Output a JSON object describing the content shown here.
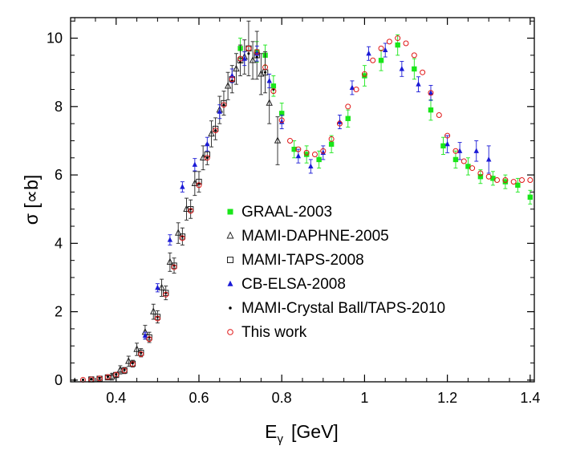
{
  "chart_data": {
    "type": "scatter",
    "title": "",
    "xlabel_main": "E",
    "xlabel_sub": "γ",
    "xlabel_unit": "[GeV]",
    "ylabel": "σ [∝b]",
    "xlim": [
      0.29,
      1.41
    ],
    "ylim": [
      -0.05,
      10.6
    ],
    "x_ticks": [
      0.4,
      0.6,
      0.8,
      1.0,
      1.2,
      1.4
    ],
    "x_tick_labels": [
      "0.4",
      "0.6",
      "0.8",
      "1",
      "1.2",
      "1.4"
    ],
    "y_ticks": [
      0,
      2,
      4,
      6,
      8,
      10
    ],
    "y_tick_labels": [
      "0",
      "2",
      "4",
      "6",
      "8",
      "10"
    ],
    "legend_position": "center",
    "series": [
      {
        "name": "GRAAL-2003",
        "marker": "filled-square",
        "color": "#19e619",
        "x": [
          0.7,
          0.74,
          0.76,
          0.78,
          0.8,
          0.83,
          0.86,
          0.89,
          0.92,
          0.96,
          1.0,
          1.04,
          1.08,
          1.12,
          1.16,
          1.19,
          1.22,
          1.25,
          1.28,
          1.31,
          1.34,
          1.37,
          1.4
        ],
        "y": [
          9.7,
          9.6,
          9.5,
          8.6,
          7.8,
          6.75,
          6.6,
          6.45,
          6.9,
          7.65,
          8.9,
          9.35,
          9.8,
          9.1,
          7.9,
          6.85,
          6.45,
          6.25,
          5.95,
          5.9,
          5.8,
          5.7,
          5.35
        ],
        "err": [
          0.3,
          0.3,
          0.3,
          0.3,
          0.3,
          0.25,
          0.25,
          0.25,
          0.25,
          0.25,
          0.3,
          0.3,
          0.3,
          0.3,
          0.3,
          0.25,
          0.25,
          0.25,
          0.2,
          0.2,
          0.2,
          0.2,
          0.2
        ]
      },
      {
        "name": "MAMI-DAPHNE-2005",
        "marker": "open-triangle",
        "color": "#222222",
        "x": [
          0.39,
          0.41,
          0.43,
          0.45,
          0.47,
          0.49,
          0.51,
          0.53,
          0.55,
          0.57,
          0.59,
          0.61,
          0.63,
          0.65,
          0.67,
          0.69,
          0.71,
          0.73,
          0.75,
          0.77,
          0.79
        ],
        "y": [
          0.1,
          0.3,
          0.55,
          0.9,
          1.4,
          2.0,
          2.7,
          3.45,
          4.3,
          5.0,
          5.75,
          6.5,
          7.2,
          7.9,
          8.6,
          9.1,
          9.45,
          9.35,
          8.95,
          8.1,
          7.0
        ],
        "err": [
          0.1,
          0.12,
          0.15,
          0.18,
          0.2,
          0.22,
          0.25,
          0.27,
          0.3,
          0.32,
          0.35,
          0.35,
          0.38,
          0.4,
          0.4,
          0.45,
          0.5,
          0.55,
          0.6,
          0.6,
          0.7
        ]
      },
      {
        "name": "MAMI-TAPS-2008",
        "marker": "open-square",
        "color": "#222222",
        "x": [
          0.34,
          0.36,
          0.38,
          0.4,
          0.42,
          0.44,
          0.46,
          0.48,
          0.5,
          0.52,
          0.54,
          0.56,
          0.58,
          0.6,
          0.62,
          0.64,
          0.66,
          0.68,
          0.7,
          0.72,
          0.74,
          0.76
        ],
        "y": [
          0.02,
          0.04,
          0.08,
          0.15,
          0.28,
          0.48,
          0.8,
          1.25,
          1.85,
          2.55,
          3.35,
          4.2,
          5.0,
          5.8,
          6.6,
          7.35,
          8.1,
          8.8,
          9.35,
          9.7,
          9.5,
          9.0
        ],
        "err": [
          0.02,
          0.03,
          0.05,
          0.07,
          0.09,
          0.1,
          0.12,
          0.15,
          0.18,
          0.2,
          0.22,
          0.25,
          0.27,
          0.3,
          0.3,
          0.32,
          0.35,
          0.4,
          0.45,
          0.8,
          0.7,
          0.6
        ]
      },
      {
        "name": "CB-ELSA-2008",
        "marker": "filled-triangle",
        "color": "#1a1ad6",
        "x": [
          0.47,
          0.5,
          0.53,
          0.56,
          0.59,
          0.62,
          0.65,
          0.68,
          0.71,
          0.74,
          0.77,
          0.8,
          0.84,
          0.87,
          0.9,
          0.94,
          0.97,
          1.01,
          1.05,
          1.09,
          1.13,
          1.16,
          1.2,
          1.23,
          1.27,
          1.3
        ],
        "y": [
          1.3,
          2.7,
          4.1,
          5.65,
          6.3,
          6.9,
          7.85,
          8.9,
          9.4,
          9.55,
          8.75,
          7.55,
          6.55,
          6.25,
          6.65,
          7.55,
          8.55,
          9.55,
          9.65,
          9.1,
          8.65,
          8.4,
          6.9,
          6.7,
          6.7,
          6.45
        ],
        "err": [
          0.1,
          0.12,
          0.15,
          0.15,
          0.18,
          0.2,
          0.2,
          0.2,
          0.2,
          0.22,
          0.2,
          0.2,
          0.2,
          0.2,
          0.2,
          0.2,
          0.2,
          0.2,
          0.2,
          0.22,
          0.22,
          0.22,
          0.25,
          0.25,
          0.3,
          0.4
        ]
      },
      {
        "name": "MAMI-Crystal Ball/TAPS-2010",
        "marker": "filled-dot",
        "color": "#000000",
        "x": [
          0.3,
          0.32,
          0.34,
          0.36,
          0.38,
          0.4,
          0.42,
          0.44,
          0.46,
          0.48,
          0.5,
          0.52,
          0.54,
          0.56,
          0.58,
          0.6,
          0.62,
          0.64,
          0.66,
          0.68,
          0.7,
          0.72,
          0.74,
          0.76,
          0.78
        ],
        "y": [
          0.0,
          0.01,
          0.03,
          0.06,
          0.1,
          0.17,
          0.3,
          0.5,
          0.8,
          1.25,
          1.85,
          2.55,
          3.35,
          4.2,
          5.0,
          5.75,
          6.5,
          7.3,
          8.05,
          8.75,
          9.3,
          9.55,
          9.45,
          9.0,
          8.5
        ]
      },
      {
        "name": "This work",
        "marker": "open-circle",
        "color": "#e01515",
        "x": [
          0.32,
          0.34,
          0.36,
          0.38,
          0.4,
          0.42,
          0.44,
          0.46,
          0.48,
          0.5,
          0.52,
          0.54,
          0.56,
          0.58,
          0.6,
          0.62,
          0.64,
          0.66,
          0.68,
          0.7,
          0.72,
          0.74,
          0.76,
          0.78,
          0.8,
          0.82,
          0.84,
          0.86,
          0.88,
          0.9,
          0.92,
          0.94,
          0.96,
          0.98,
          1.0,
          1.02,
          1.04,
          1.06,
          1.08,
          1.1,
          1.12,
          1.14,
          1.16,
          1.18,
          1.2,
          1.22,
          1.24,
          1.26,
          1.28,
          1.3,
          1.32,
          1.34,
          1.36,
          1.38,
          1.4
        ],
        "y": [
          0.01,
          0.02,
          0.05,
          0.09,
          0.16,
          0.28,
          0.47,
          0.76,
          1.2,
          1.8,
          2.5,
          3.3,
          4.15,
          4.95,
          5.7,
          6.5,
          7.3,
          8.05,
          8.8,
          9.4,
          9.7,
          9.6,
          9.15,
          8.45,
          7.6,
          7.0,
          6.75,
          6.65,
          6.6,
          6.7,
          7.05,
          7.5,
          8.0,
          8.5,
          8.95,
          9.35,
          9.7,
          9.9,
          10.0,
          9.85,
          9.5,
          9.0,
          8.4,
          7.75,
          7.15,
          6.7,
          6.4,
          6.2,
          6.05,
          5.95,
          5.85,
          5.85,
          5.8,
          5.85,
          5.85
        ]
      }
    ]
  }
}
